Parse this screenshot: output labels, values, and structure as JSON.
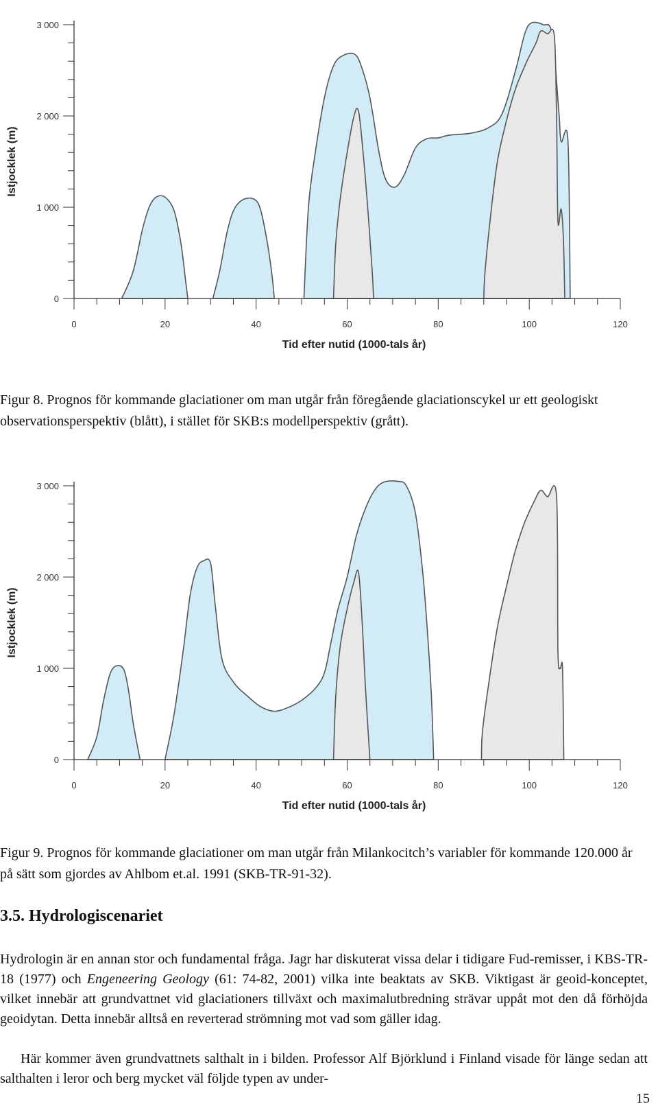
{
  "chart_data": [
    {
      "type": "area",
      "xlabel": "Tid efter nutid (1000-tals år)",
      "ylabel": "Istjocklek (m)",
      "xlim": [
        0,
        120
      ],
      "ylim": [
        0,
        3000
      ],
      "x_ticks": [
        0,
        20,
        40,
        60,
        80,
        100,
        120
      ],
      "y_ticks": [
        0,
        1000,
        2000,
        3000
      ],
      "y_tick_labels": [
        "0",
        "1 000",
        "2 000",
        "3 000"
      ],
      "grid": false,
      "series": [
        {
          "color": "#d2ecf7",
          "regions": [
            [
              [
                10.5,
                0
              ],
              [
                13,
                300
              ],
              [
                15,
                750
              ],
              [
                16.5,
                1000
              ],
              [
                18,
                1110
              ],
              [
                20,
                1110
              ],
              [
                22,
                960
              ],
              [
                23.5,
                600
              ],
              [
                24.5,
                200
              ],
              [
                25,
                0
              ]
            ],
            [
              [
                30.5,
                0
              ],
              [
                32,
                300
              ],
              [
                33.5,
                700
              ],
              [
                35,
                960
              ],
              [
                37,
                1080
              ],
              [
                39.5,
                1090
              ],
              [
                41,
                970
              ],
              [
                42.5,
                600
              ],
              [
                43.5,
                250
              ],
              [
                44,
                0
              ]
            ],
            [
              [
                50.5,
                0
              ],
              [
                51.5,
                1000
              ],
              [
                53,
                1600
              ],
              [
                55,
                2200
              ],
              [
                57,
                2550
              ],
              [
                59,
                2660
              ],
              [
                61.5,
                2680
              ],
              [
                63,
                2560
              ],
              [
                65,
                2200
              ],
              [
                67,
                1600
              ],
              [
                68.5,
                1300
              ],
              [
                70.5,
                1220
              ],
              [
                72.5,
                1350
              ],
              [
                75,
                1650
              ],
              [
                77.5,
                1750
              ],
              [
                80,
                1760
              ],
              [
                82.5,
                1790
              ],
              [
                87,
                1810
              ],
              [
                91,
                1870
              ],
              [
                94,
                2020
              ],
              [
                97,
                2500
              ],
              [
                99,
                2900
              ],
              [
                100.5,
                3020
              ],
              [
                103,
                3000
              ],
              [
                105,
                2900
              ],
              [
                106.5,
                2050
              ],
              [
                107,
                1720
              ],
              [
                108.5,
                1730
              ],
              [
                109,
                0
              ]
            ]
          ]
        },
        {
          "color": "#e8e8e8",
          "regions": [
            [
              [
                57,
                0
              ],
              [
                57.5,
                600
              ],
              [
                58.5,
                1100
              ],
              [
                60,
                1600
              ],
              [
                61.5,
                2000
              ],
              [
                62.5,
                2050
              ],
              [
                63.5,
                1600
              ],
              [
                64.5,
                1000
              ],
              [
                65.5,
                300
              ],
              [
                65.8,
                0
              ]
            ],
            [
              [
                90,
                0
              ],
              [
                90.3,
                300
              ],
              [
                91.5,
                900
              ],
              [
                93,
                1500
              ],
              [
                95,
                1950
              ],
              [
                97,
                2300
              ],
              [
                99.5,
                2600
              ],
              [
                101.5,
                2800
              ],
              [
                102.5,
                2930
              ],
              [
                104,
                2900
              ],
              [
                105.5,
                2880
              ],
              [
                106,
                2000
              ],
              [
                106.3,
                850
              ],
              [
                107,
                980
              ],
              [
                107.5,
                650
              ],
              [
                107.8,
                0
              ]
            ]
          ]
        }
      ]
    },
    {
      "type": "area",
      "xlabel": "Tid efter nutid (1000-tals år)",
      "ylabel": "Istjocklek (m)",
      "xlim": [
        0,
        120
      ],
      "ylim": [
        0,
        3000
      ],
      "x_ticks": [
        0,
        20,
        40,
        60,
        80,
        100,
        120
      ],
      "y_ticks": [
        0,
        1000,
        2000,
        3000
      ],
      "y_tick_labels": [
        "0",
        "1 000",
        "2 000",
        "3 000"
      ],
      "grid": false,
      "series": [
        {
          "color": "#d2ecf7",
          "regions": [
            [
              [
                3,
                0
              ],
              [
                5,
                250
              ],
              [
                6.5,
                650
              ],
              [
                8,
                950
              ],
              [
                9.5,
                1030
              ],
              [
                11,
                980
              ],
              [
                12,
                750
              ],
              [
                13,
                400
              ],
              [
                14.5,
                0
              ]
            ],
            [
              [
                20,
                0
              ],
              [
                22,
                500
              ],
              [
                24,
                1200
              ],
              [
                25.5,
                1800
              ],
              [
                27,
                2100
              ],
              [
                28.5,
                2180
              ],
              [
                30,
                2150
              ],
              [
                31,
                1700
              ],
              [
                32.5,
                1100
              ],
              [
                35,
                850
              ],
              [
                38,
                700
              ],
              [
                41,
                580
              ],
              [
                44,
                530
              ],
              [
                47,
                570
              ],
              [
                50,
                650
              ],
              [
                53,
                780
              ],
              [
                55,
                950
              ],
              [
                56.5,
                1300
              ],
              [
                58,
                1650
              ],
              [
                60,
                2000
              ],
              [
                62,
                2450
              ],
              [
                64,
                2750
              ],
              [
                66,
                2950
              ],
              [
                68,
                3040
              ],
              [
                71,
                3050
              ],
              [
                73,
                3000
              ],
              [
                75,
                2700
              ],
              [
                76.5,
                2100
              ],
              [
                77.5,
                1500
              ],
              [
                78.5,
                700
              ],
              [
                79,
                0
              ]
            ]
          ]
        },
        {
          "color": "#e8e8e8",
          "regions": [
            [
              [
                57,
                0
              ],
              [
                57.5,
                700
              ],
              [
                58.5,
                1250
              ],
              [
                60,
                1650
              ],
              [
                61.5,
                1950
              ],
              [
                62.5,
                2050
              ],
              [
                63.3,
                1500
              ],
              [
                64,
                800
              ],
              [
                65,
                0
              ]
            ],
            [
              [
                89.5,
                0
              ],
              [
                89.7,
                300
              ],
              [
                91,
                800
              ],
              [
                93,
                1450
              ],
              [
                95,
                1900
              ],
              [
                97,
                2300
              ],
              [
                99,
                2600
              ],
              [
                101,
                2820
              ],
              [
                102.5,
                2950
              ],
              [
                104,
                2880
              ],
              [
                106,
                2880
              ],
              [
                106.3,
                1200
              ],
              [
                106.8,
                1000
              ],
              [
                107.3,
                1000
              ],
              [
                107.6,
                0
              ]
            ]
          ]
        }
      ]
    }
  ],
  "captions": {
    "fig8": "Figur 8. Prognos för kommande glaciationer om man utgår från föregående glaciationscykel ur ett geologiskt observationsperspektiv (blått), i stället för SKB:s modellperspektiv (grått).",
    "fig9": "Figur 9. Prognos för kommande glaciationer om man utgår från Milankocitch’s variabler för kommande 120.000 år på sätt som gjordes av Ahlbom et.al. 1991 (SKB-TR-91-32)."
  },
  "section": {
    "heading": "3.5. Hydrologiscenariet",
    "p1_before": "Hydrologin är en annan stor och fundamental fråga. Jagr har diskuterat vissa delar i tidigare Fud-remisser, i KBS-TR-18 (1977) och ",
    "p1_italic": "Engeneering Geology",
    "p1_after": " (61: 74-82, 2001) vilka inte beaktats av SKB. Viktigast är geoid-konceptet, vilket innebär att grundvattnet vid glaciationers tillväxt och maximalutbredning strävar uppåt mot den då förhöjda geoidytan. Detta innebär alltså en reverterad strömning mot vad som gäller idag.",
    "p2": "Här kommer även grundvattnets salthalt in i bilden. Professor Alf Björklund i Finland visade för länge sedan att salthalten i leror och berg mycket väl följde typen av under-"
  },
  "page_number": "15"
}
